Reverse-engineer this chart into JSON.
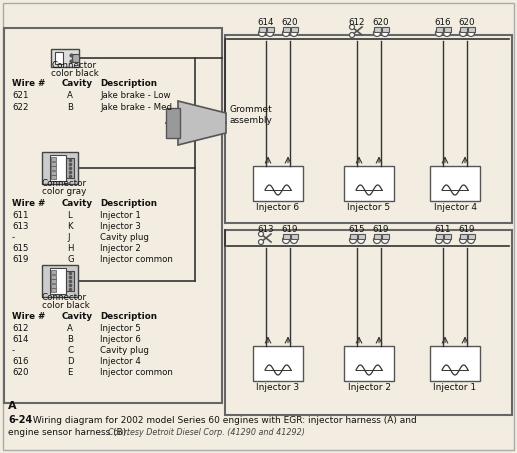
{
  "bg_color": "#f2ede0",
  "border_color": "#777777",
  "line_color": "#333333",
  "caption_num": "6-24",
  "caption_text": " Wiring diagram for 2002 model Series 60 engines with EGR: injector harness (A) and",
  "caption_text2": "engine sensor harness (B). ",
  "courtesy": "Courtesy Detroit Diesel Corp. (41290 and 41292)",
  "section_label": "A",
  "connector1_wires": [
    [
      "621",
      "A",
      "Jake brake - Low"
    ],
    [
      "622",
      "B",
      "Jake brake - Med"
    ]
  ],
  "connector2_wires": [
    [
      "611",
      "L",
      "Injector 1"
    ],
    [
      "613",
      "K",
      "Injector 3"
    ],
    [
      "-",
      "J",
      "Cavity plug"
    ],
    [
      "615",
      "H",
      "Injector 2"
    ],
    [
      "619",
      "G",
      "Injector common"
    ]
  ],
  "connector3_wires": [
    [
      "612",
      "A",
      "Injector 5"
    ],
    [
      "614",
      "B",
      "Injector 6"
    ],
    [
      "-",
      "C",
      "Cavity plug"
    ],
    [
      "616",
      "D",
      "Injector 4"
    ],
    [
      "620",
      "E",
      "Injector common"
    ]
  ],
  "top_injectors": [
    {
      "label": "Injector 6",
      "w1": "614",
      "w2": "620",
      "scissors": false
    },
    {
      "label": "Injector 5",
      "w1": "612",
      "w2": "620",
      "scissors": true
    },
    {
      "label": "Injector 4",
      "w1": "616",
      "w2": "620",
      "scissors": false
    }
  ],
  "bot_injectors": [
    {
      "label": "Injector 3",
      "w1": "613",
      "w2": "619",
      "scissors": true
    },
    {
      "label": "Injector 2",
      "w1": "615",
      "w2": "619",
      "scissors": false
    },
    {
      "label": "Injector 1",
      "w1": "611",
      "w2": "619",
      "scissors": false
    }
  ],
  "grommet_label": "Grommet\nassembly"
}
